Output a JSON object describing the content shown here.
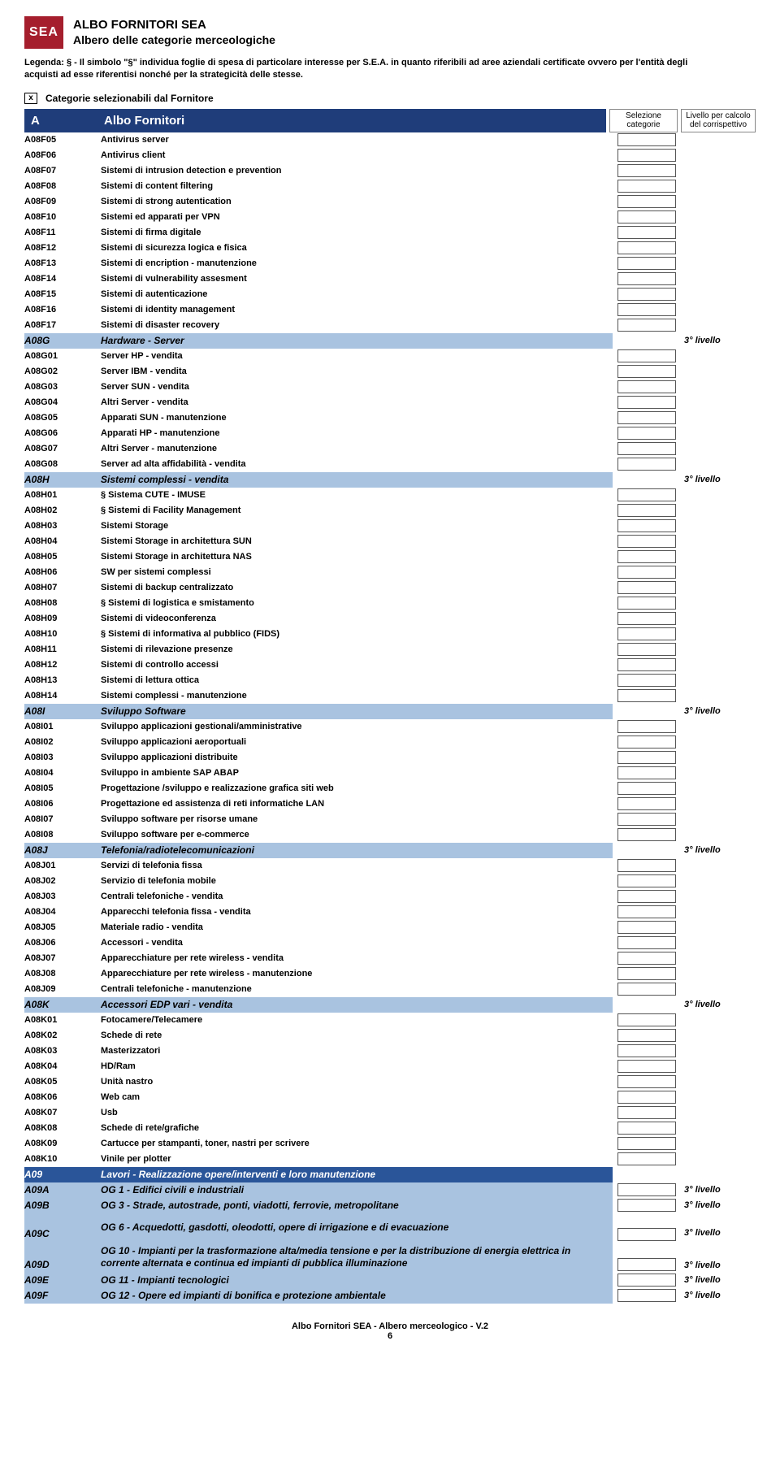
{
  "logo_text": "SEA",
  "title_main": "ALBO FORNITORI SEA",
  "title_sub": "Albero delle categorie merceologiche",
  "legenda": "Legenda: § - Il simbolo \"§\" individua foglie di spesa di particolare interesse per  S.E.A. in quanto riferibili ad aree aziendali certificate ovvero per l'entità degli acquisti ad esse riferentisi nonché per la strategicità delle stesse.",
  "sel_marker": "x",
  "sel_label": "Categorie selezionabili dal Fornitore",
  "header": {
    "code": "A",
    "desc": "Albo Fornitori",
    "sel": "Selezione categorie",
    "lvl": "Livello per calcolo del corrispettivo"
  },
  "level3_label": "3° livello",
  "colors": {
    "brand_red": "#a51e2d",
    "header_blue": "#1f3d7a",
    "section_blue": "#2a5599",
    "category_blue": "#a9c3e0"
  },
  "rows": [
    {
      "type": "item",
      "code": "A08F05",
      "desc": "Antivirus server",
      "sel": true
    },
    {
      "type": "item",
      "code": "A08F06",
      "desc": "Antivirus client",
      "sel": true
    },
    {
      "type": "item",
      "code": "A08F07",
      "desc": "Sistemi di intrusion detection e prevention",
      "sel": true
    },
    {
      "type": "item",
      "code": "A08F08",
      "desc": "Sistemi di content filtering",
      "sel": true
    },
    {
      "type": "item",
      "code": "A08F09",
      "desc": "Sistemi di strong autentication",
      "sel": true
    },
    {
      "type": "item",
      "code": "A08F10",
      "desc": "Sistemi ed apparati per VPN",
      "sel": true
    },
    {
      "type": "item",
      "code": "A08F11",
      "desc": "Sistemi di firma digitale",
      "sel": true
    },
    {
      "type": "item",
      "code": "A08F12",
      "desc": "Sistemi di sicurezza logica e fisica",
      "sel": true
    },
    {
      "type": "item",
      "code": "A08F13",
      "desc": "Sistemi di encription - manutenzione",
      "sel": true
    },
    {
      "type": "item",
      "code": "A08F14",
      "desc": "Sistemi di vulnerability assesment",
      "sel": true
    },
    {
      "type": "item",
      "code": "A08F15",
      "desc": "Sistemi di autenticazione",
      "sel": true
    },
    {
      "type": "item",
      "code": "A08F16",
      "desc": "Sistemi di identity management",
      "sel": true
    },
    {
      "type": "item",
      "code": "A08F17",
      "desc": "Sistemi di disaster recovery",
      "sel": true
    },
    {
      "type": "cat",
      "code": "A08G",
      "desc": "Hardware - Server",
      "lvl": true
    },
    {
      "type": "item",
      "code": "A08G01",
      "desc": "Server HP - vendita",
      "sel": true
    },
    {
      "type": "item",
      "code": "A08G02",
      "desc": "Server IBM - vendita",
      "sel": true
    },
    {
      "type": "item",
      "code": "A08G03",
      "desc": "Server SUN - vendita",
      "sel": true
    },
    {
      "type": "item",
      "code": "A08G04",
      "desc": "Altri Server - vendita",
      "sel": true
    },
    {
      "type": "item",
      "code": "A08G05",
      "desc": "Apparati SUN - manutenzione",
      "sel": true
    },
    {
      "type": "item",
      "code": "A08G06",
      "desc": "Apparati HP - manutenzione",
      "sel": true
    },
    {
      "type": "item",
      "code": "A08G07",
      "desc": "Altri Server - manutenzione",
      "sel": true
    },
    {
      "type": "item",
      "code": "A08G08",
      "desc": "Server ad alta affidabilità - vendita",
      "sel": true
    },
    {
      "type": "cat",
      "code": "A08H",
      "desc": "Sistemi complessi - vendita",
      "lvl": true
    },
    {
      "type": "item",
      "code": "A08H01",
      "desc": "§ Sistema CUTE - IMUSE",
      "sel": true
    },
    {
      "type": "item",
      "code": "A08H02",
      "desc": "§ Sistemi di Facility Management",
      "sel": true
    },
    {
      "type": "item",
      "code": "A08H03",
      "desc": "Sistemi Storage",
      "sel": true
    },
    {
      "type": "item",
      "code": "A08H04",
      "desc": "Sistemi Storage in architettura SUN",
      "sel": true
    },
    {
      "type": "item",
      "code": "A08H05",
      "desc": "Sistemi Storage in architettura NAS",
      "sel": true
    },
    {
      "type": "item",
      "code": "A08H06",
      "desc": "SW per sistemi complessi",
      "sel": true
    },
    {
      "type": "item",
      "code": "A08H07",
      "desc": "Sistemi di backup centralizzato",
      "sel": true
    },
    {
      "type": "item",
      "code": "A08H08",
      "desc": "§ Sistemi di logistica e smistamento",
      "sel": true
    },
    {
      "type": "item",
      "code": "A08H09",
      "desc": "Sistemi di videoconferenza",
      "sel": true
    },
    {
      "type": "item",
      "code": "A08H10",
      "desc": "§ Sistemi di informativa al pubblico (FIDS)",
      "sel": true
    },
    {
      "type": "item",
      "code": "A08H11",
      "desc": "Sistemi di rilevazione presenze",
      "sel": true
    },
    {
      "type": "item",
      "code": "A08H12",
      "desc": "Sistemi di controllo accessi",
      "sel": true
    },
    {
      "type": "item",
      "code": "A08H13",
      "desc": "Sistemi di lettura ottica",
      "sel": true
    },
    {
      "type": "item",
      "code": "A08H14",
      "desc": "Sistemi complessi - manutenzione",
      "sel": true
    },
    {
      "type": "cat",
      "code": "A08I",
      "desc": "Sviluppo Software",
      "lvl": true
    },
    {
      "type": "item",
      "code": "A08I01",
      "desc": "Sviluppo applicazioni gestionali/amministrative",
      "sel": true
    },
    {
      "type": "item",
      "code": "A08I02",
      "desc": "Sviluppo applicazioni aeroportuali",
      "sel": true
    },
    {
      "type": "item",
      "code": "A08I03",
      "desc": "Sviluppo applicazioni distribuite",
      "sel": true
    },
    {
      "type": "item",
      "code": "A08I04",
      "desc": "Sviluppo in ambiente SAP ABAP",
      "sel": true
    },
    {
      "type": "item",
      "code": "A08I05",
      "desc": "Progettazione /sviluppo e realizzazione grafica siti web",
      "sel": true
    },
    {
      "type": "item",
      "code": "A08I06",
      "desc": "Progettazione ed assistenza di reti informatiche LAN",
      "sel": true
    },
    {
      "type": "item",
      "code": "A08I07",
      "desc": "Sviluppo software per risorse umane",
      "sel": true
    },
    {
      "type": "item",
      "code": "A08I08",
      "desc": "Sviluppo software per e-commerce",
      "sel": true
    },
    {
      "type": "cat",
      "code": "A08J",
      "desc": "Telefonia/radiotelecomunicazioni",
      "lvl": true
    },
    {
      "type": "item",
      "code": "A08J01",
      "desc": "Servizi di telefonia fissa",
      "sel": true
    },
    {
      "type": "item",
      "code": "A08J02",
      "desc": "Servizio di telefonia mobile",
      "sel": true
    },
    {
      "type": "item",
      "code": "A08J03",
      "desc": "Centrali telefoniche - vendita",
      "sel": true
    },
    {
      "type": "item",
      "code": "A08J04",
      "desc": "Apparecchi telefonia fissa - vendita",
      "sel": true
    },
    {
      "type": "item",
      "code": "A08J05",
      "desc": "Materiale radio - vendita",
      "sel": true
    },
    {
      "type": "item",
      "code": "A08J06",
      "desc": "Accessori - vendita",
      "sel": true
    },
    {
      "type": "item",
      "code": "A08J07",
      "desc": "Apparecchiature per rete wireless - vendita",
      "sel": true
    },
    {
      "type": "item",
      "code": "A08J08",
      "desc": "Apparecchiature per rete wireless - manutenzione",
      "sel": true
    },
    {
      "type": "item",
      "code": "A08J09",
      "desc": "Centrali telefoniche - manutenzione",
      "sel": true
    },
    {
      "type": "cat",
      "code": "A08K",
      "desc": "Accessori EDP vari - vendita",
      "lvl": true
    },
    {
      "type": "item",
      "code": "A08K01",
      "desc": "Fotocamere/Telecamere",
      "sel": true
    },
    {
      "type": "item",
      "code": "A08K02",
      "desc": "Schede di rete",
      "sel": true
    },
    {
      "type": "item",
      "code": "A08K03",
      "desc": "Masterizzatori",
      "sel": true
    },
    {
      "type": "item",
      "code": "A08K04",
      "desc": "HD/Ram",
      "sel": true
    },
    {
      "type": "item",
      "code": "A08K05",
      "desc": "Unità nastro",
      "sel": true
    },
    {
      "type": "item",
      "code": "A08K06",
      "desc": "Web cam",
      "sel": true
    },
    {
      "type": "item",
      "code": "A08K07",
      "desc": "Usb",
      "sel": true
    },
    {
      "type": "item",
      "code": "A08K08",
      "desc": "Schede di rete/grafiche",
      "sel": true
    },
    {
      "type": "item",
      "code": "A08K09",
      "desc": "Cartucce per stampanti, toner, nastri per scrivere",
      "sel": true
    },
    {
      "type": "item",
      "code": "A08K10",
      "desc": "Vinile per plotter",
      "sel": true
    },
    {
      "type": "sec",
      "code": "A09",
      "desc": "Lavori - Realizzazione opere/interventi e loro manutenzione"
    },
    {
      "type": "subcat",
      "code": "A09A",
      "desc": "OG 1 - Edifici civili e industriali",
      "sel": true,
      "lvl": true
    },
    {
      "type": "subcat",
      "code": "A09B",
      "desc": "OG 3 - Strade, autostrade, ponti, viadotti, ferrovie, metropolitane",
      "sel": true,
      "lvl": true
    },
    {
      "type": "subcat",
      "code": "A09C",
      "desc": "OG 6 - Acquedotti, gasdotti, oleodotti, opere di irrigazione e di evacuazione",
      "sel": true,
      "lvl": true,
      "multi": true,
      "pre": true
    },
    {
      "type": "subcat",
      "code": "A09D",
      "desc": "OG 10 - Impianti per la trasformazione alta/media tensione e per la distribuzione di energia elettrica in corrente alternata e continua ed impianti di pubblica illuminazione",
      "sel": true,
      "lvl": true,
      "multi": true
    },
    {
      "type": "subcat",
      "code": "A09E",
      "desc": "OG 11 - Impianti tecnologici",
      "sel": true,
      "lvl": true
    },
    {
      "type": "subcat",
      "code": "A09F",
      "desc": "OG 12 - Opere ed impianti di bonifica e protezione ambientale",
      "sel": true,
      "lvl": true
    }
  ],
  "footer_line1": "Albo Fornitori SEA - Albero merceologico - V.2",
  "footer_line2": "6"
}
